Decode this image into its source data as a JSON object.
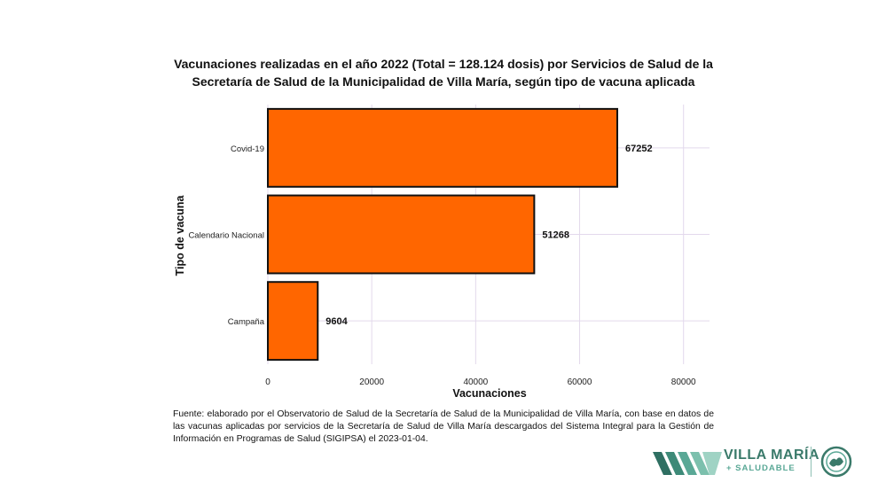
{
  "title_lines": [
    "Vacunaciones realizadas en el año 2022 (Total = 128.124 dosis) por Servicios de Salud de la",
    "Secretaría de Salud de la Municipalidad de Villa María, según tipo de vacuna aplicada"
  ],
  "chart_data": {
    "type": "bar",
    "orientation": "horizontal",
    "categories": [
      "Covid-19",
      "Calendario Nacional",
      "Campaña"
    ],
    "values": [
      67252,
      51268,
      9604
    ],
    "data_labels": [
      "67252",
      "51268",
      "9604"
    ],
    "xlabel": "Vacunaciones",
    "ylabel": "Tipo de vacuna",
    "xlim": [
      0,
      85000
    ],
    "xticks": [
      0,
      20000,
      40000,
      60000,
      80000
    ],
    "xtick_labels": [
      "0",
      "20000",
      "40000",
      "60000",
      "80000"
    ],
    "grid": true,
    "colors": {
      "bar_fill": "#ff6600",
      "bar_stroke": "#111111",
      "grid": "#e3d9ec"
    }
  },
  "source_note": "Fuente: elaborado por el Observatorio de Salud de la Secretaría de Salud de la Municipalidad de Villa María, con base en datos de las vacunas aplicadas por servicios de la Secretaría de Salud de Villa María descargados del Sistema Integral para la Gestión de Información en Programas de Salud (SIGIPSA) el 2023-01-04.",
  "logo": {
    "name": "VILLA MARÍA",
    "tagline": "+ SALUDABLE",
    "colors": {
      "primary": "#3a7a6a",
      "secondary": "#5aa896"
    }
  }
}
